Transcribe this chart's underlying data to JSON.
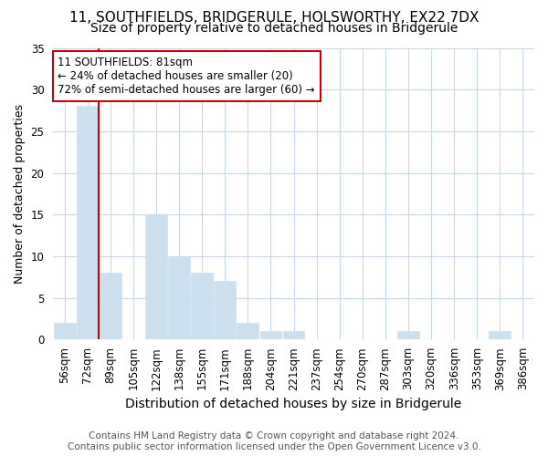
{
  "title": "11, SOUTHFIELDS, BRIDGERULE, HOLSWORTHY, EX22 7DX",
  "subtitle": "Size of property relative to detached houses in Bridgerule",
  "xlabel": "Distribution of detached houses by size in Bridgerule",
  "ylabel": "Number of detached properties",
  "footer_line1": "Contains HM Land Registry data © Crown copyright and database right 2024.",
  "footer_line2": "Contains public sector information licensed under the Open Government Licence v3.0.",
  "categories": [
    "56sqm",
    "72sqm",
    "89sqm",
    "105sqm",
    "122sqm",
    "138sqm",
    "155sqm",
    "171sqm",
    "188sqm",
    "204sqm",
    "221sqm",
    "237sqm",
    "254sqm",
    "270sqm",
    "287sqm",
    "303sqm",
    "320sqm",
    "336sqm",
    "353sqm",
    "369sqm",
    "386sqm"
  ],
  "values": [
    2,
    28,
    8,
    0,
    15,
    10,
    8,
    7,
    2,
    1,
    1,
    0,
    0,
    0,
    0,
    1,
    0,
    0,
    0,
    1,
    0
  ],
  "bar_color": "#cde0f0",
  "bar_edge_color": "#cde0f0",
  "vline_color": "#cc0000",
  "vline_x_index": 1.5,
  "annotation_line1": "11 SOUTHFIELDS: 81sqm",
  "annotation_line2": "← 24% of detached houses are smaller (20)",
  "annotation_line3": "72% of semi-detached houses are larger (60) →",
  "annotation_box_color": "#ffffff",
  "annotation_box_edge": "#cc0000",
  "ylim": [
    0,
    35
  ],
  "yticks": [
    0,
    5,
    10,
    15,
    20,
    25,
    30,
    35
  ],
  "background_color": "#ffffff",
  "grid_color": "#c5d8ec",
  "title_fontsize": 11,
  "subtitle_fontsize": 10,
  "xlabel_fontsize": 10,
  "ylabel_fontsize": 9,
  "tick_fontsize": 8.5,
  "footer_fontsize": 7.5
}
